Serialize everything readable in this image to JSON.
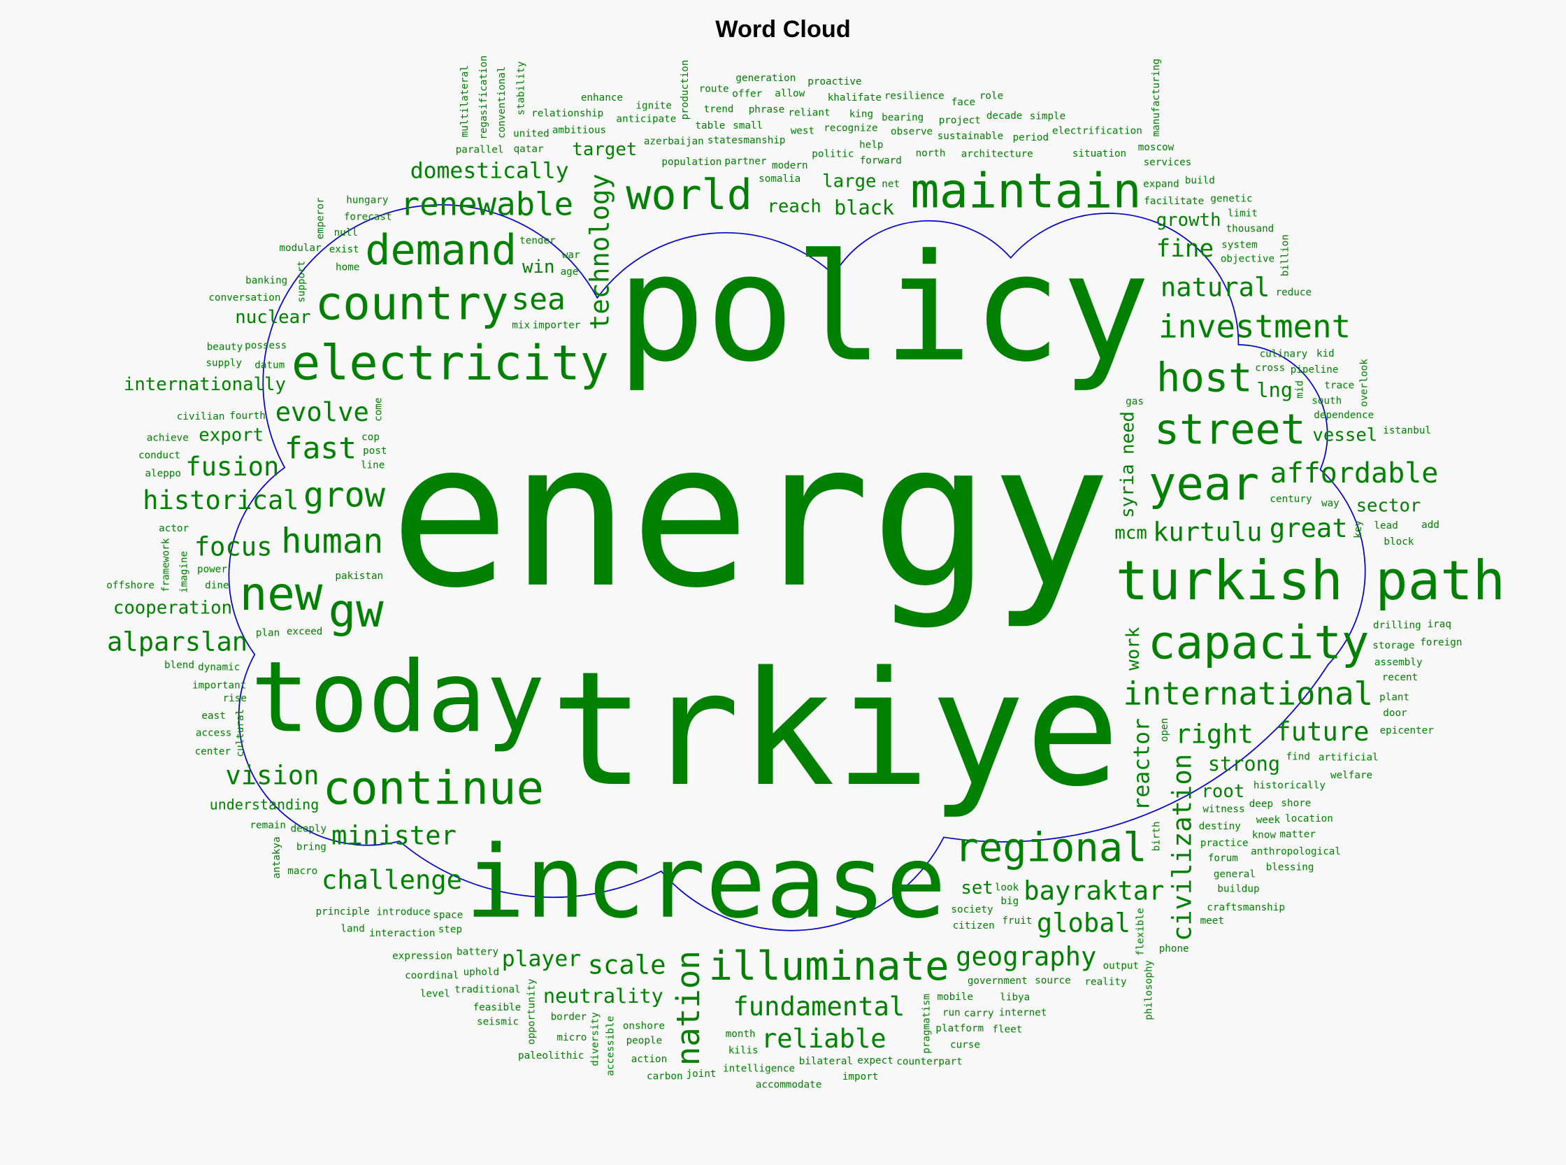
{
  "title": "Word Cloud",
  "chart_data": {
    "type": "wordcloud",
    "title": "Word Cloud",
    "word_color": "#008000",
    "outline_color": "#0000cc",
    "background_color": "#f8f8f8",
    "shape": "cloud",
    "words": [
      {
        "text": "energy",
        "weight": 100
      },
      {
        "text": "policy",
        "weight": 74
      },
      {
        "text": "trkiye",
        "weight": 79
      },
      {
        "text": "today",
        "weight": 49
      },
      {
        "text": "increase",
        "weight": 50
      },
      {
        "text": "electricity",
        "weight": 24
      },
      {
        "text": "maintain",
        "weight": 24
      },
      {
        "text": "country",
        "weight": 23
      },
      {
        "text": "demand",
        "weight": 21
      },
      {
        "text": "renewable",
        "weight": 16
      },
      {
        "text": "sea",
        "weight": 15
      },
      {
        "text": "world",
        "weight": 21
      },
      {
        "text": "kurtulu",
        "weight": 13
      },
      {
        "text": "black",
        "weight": 10
      },
      {
        "text": "great",
        "weight": 13
      },
      {
        "text": "right",
        "weight": 13
      },
      {
        "text": "natural",
        "weight": 13
      },
      {
        "text": "host",
        "weight": 20
      },
      {
        "text": "investment",
        "weight": 16
      },
      {
        "text": "affordable",
        "weight": 14
      },
      {
        "text": "year",
        "weight": 23
      },
      {
        "text": "vessel",
        "weight": 9
      },
      {
        "text": "sector",
        "weight": 9
      },
      {
        "text": "street",
        "weight": 21
      },
      {
        "text": "capacity",
        "weight": 23
      },
      {
        "text": "future",
        "weight": 13
      },
      {
        "text": "lng",
        "weight": 10
      },
      {
        "text": "turkish path",
        "weight": 27
      },
      {
        "text": "international",
        "weight": 16
      },
      {
        "text": "strong",
        "weight": 10
      },
      {
        "text": "bayraktar",
        "weight": 13
      },
      {
        "text": "global",
        "weight": 13
      },
      {
        "text": "mcm",
        "weight": 9
      },
      {
        "text": "fundamental",
        "weight": 13
      },
      {
        "text": "illuminate",
        "weight": 20
      },
      {
        "text": "reliable",
        "weight": 13
      },
      {
        "text": "neutrality",
        "weight": 10
      },
      {
        "text": "player",
        "weight": 11
      },
      {
        "text": "minister",
        "weight": 13
      },
      {
        "text": "continue",
        "weight": 23
      },
      {
        "text": "challenge",
        "weight": 13
      },
      {
        "text": "evolve",
        "weight": 13
      },
      {
        "text": "human",
        "weight": 17
      },
      {
        "text": "gw",
        "weight": 23
      },
      {
        "text": "new",
        "weight": 23
      },
      {
        "text": "vision",
        "weight": 13
      },
      {
        "text": "understanding",
        "weight": 7
      },
      {
        "text": "regional",
        "weight": 20
      },
      {
        "text": "scale",
        "weight": 13
      },
      {
        "text": "grow",
        "weight": 17
      },
      {
        "text": "geography",
        "weight": 13
      },
      {
        "text": "technology",
        "weight": 13
      },
      {
        "text": "civilization",
        "weight": 13
      },
      {
        "text": "nation",
        "weight": 16
      },
      {
        "text": "reactor",
        "weight": 11
      },
      {
        "text": "work",
        "weight": 9
      },
      {
        "text": "syria",
        "weight": 9
      },
      {
        "text": "need",
        "weight": 9
      },
      {
        "text": "historical",
        "weight": 13
      },
      {
        "text": "win",
        "weight": 9
      },
      {
        "text": "focus",
        "weight": 13
      },
      {
        "text": "target",
        "weight": 9
      },
      {
        "text": "domestically",
        "weight": 11
      },
      {
        "text": "nuclear",
        "weight": 9
      },
      {
        "text": "internationally",
        "weight": 9
      },
      {
        "text": "export",
        "weight": 9
      },
      {
        "text": "fast",
        "weight": 15
      },
      {
        "text": "fusion",
        "weight": 13
      },
      {
        "text": "alparslan",
        "weight": 13
      },
      {
        "text": "cooperation",
        "weight": 9
      },
      {
        "text": "growth",
        "weight": 9
      },
      {
        "text": "fine",
        "weight": 12
      },
      {
        "text": "reach",
        "weight": 9
      },
      {
        "text": "large",
        "weight": 9
      },
      {
        "text": "set",
        "weight": 9
      },
      {
        "text": "root",
        "weight": 9
      },
      {
        "text": "population",
        "weight": 5
      },
      {
        "text": "azerbaijan",
        "weight": 5
      },
      {
        "text": "home",
        "weight": 5
      },
      {
        "text": "importer",
        "weight": 5
      },
      {
        "text": "exist",
        "weight": 5
      },
      {
        "text": "pakistan",
        "weight": 5
      },
      {
        "text": "exceed",
        "weight": 5
      },
      {
        "text": "datum",
        "weight": 5
      },
      {
        "text": "come",
        "weight": 5
      },
      {
        "text": "possess",
        "weight": 5
      },
      {
        "text": "tender",
        "weight": 5
      },
      {
        "text": "qatar",
        "weight": 5
      },
      {
        "text": "post",
        "weight": 5
      },
      {
        "text": "parallel",
        "weight": 5
      },
      {
        "text": "united",
        "weight": 5
      },
      {
        "text": "ambitious",
        "weight": 5
      },
      {
        "text": "somalia",
        "weight": 5
      },
      {
        "text": "modern",
        "weight": 5
      },
      {
        "text": "statesmanship",
        "weight": 5
      },
      {
        "text": "anticipate",
        "weight": 5
      },
      {
        "text": "forecast",
        "weight": 5
      },
      {
        "text": "politic",
        "weight": 5
      },
      {
        "text": "cross",
        "weight": 5
      },
      {
        "text": "century",
        "weight": 5
      },
      {
        "text": "culinary",
        "weight": 5
      },
      {
        "text": "facilitate",
        "weight": 5
      },
      {
        "text": "architecture",
        "weight": 5
      },
      {
        "text": "mid",
        "weight": 5
      },
      {
        "text": "pipeline",
        "weight": 5
      },
      {
        "text": "gas",
        "weight": 5
      },
      {
        "text": "south",
        "weight": 5
      },
      {
        "text": "dependence",
        "weight": 5
      },
      {
        "text": "way",
        "weight": 5
      },
      {
        "text": "trace",
        "weight": 5
      },
      {
        "text": "objective",
        "weight": 5
      },
      {
        "text": "reduce",
        "weight": 5
      },
      {
        "text": "kid",
        "weight": 5
      },
      {
        "text": "system",
        "weight": 5
      },
      {
        "text": "thousand",
        "weight": 5
      },
      {
        "text": "expand",
        "weight": 5
      },
      {
        "text": "genetic",
        "weight": 5
      },
      {
        "text": "build",
        "weight": 5
      },
      {
        "text": "situation",
        "weight": 5
      },
      {
        "text": "services",
        "weight": 5
      },
      {
        "text": "period",
        "weight": 5
      },
      {
        "text": "north",
        "weight": 5
      },
      {
        "text": "forward",
        "weight": 5
      },
      {
        "text": "help",
        "weight": 5
      },
      {
        "text": "net",
        "weight": 5
      },
      {
        "text": "partner",
        "weight": 5
      },
      {
        "text": "west",
        "weight": 5
      },
      {
        "text": "recognize",
        "weight": 5
      },
      {
        "text": "small",
        "weight": 5
      },
      {
        "text": "observe",
        "weight": 5
      },
      {
        "text": "sustainable",
        "weight": 5
      },
      {
        "text": "electrification",
        "weight": 5
      },
      {
        "text": "limit",
        "weight": 5
      },
      {
        "text": "project",
        "weight": 5
      },
      {
        "text": "bearing",
        "weight": 5
      },
      {
        "text": "king",
        "weight": 5
      },
      {
        "text": "reliant",
        "weight": 5
      },
      {
        "text": "khalifate",
        "weight": 5
      },
      {
        "text": "resilience",
        "weight": 5
      },
      {
        "text": "decade",
        "weight": 5
      },
      {
        "text": "simple",
        "weight": 5
      },
      {
        "text": "face",
        "weight": 5
      },
      {
        "text": "moscow",
        "weight": 5
      },
      {
        "text": "table",
        "weight": 5
      },
      {
        "text": "phrase",
        "weight": 5
      },
      {
        "text": "billion",
        "weight": 5
      },
      {
        "text": "overlook",
        "weight": 5
      },
      {
        "text": "key",
        "weight": 5
      },
      {
        "text": "allow",
        "weight": 5
      },
      {
        "text": "age",
        "weight": 5
      },
      {
        "text": "trend",
        "weight": 5
      },
      {
        "text": "role",
        "weight": 5
      },
      {
        "text": "look",
        "weight": 5
      },
      {
        "text": "proactive",
        "weight": 5
      },
      {
        "text": "society",
        "weight": 5
      },
      {
        "text": "citizen",
        "weight": 5
      },
      {
        "text": "lead",
        "weight": 5
      },
      {
        "text": "witness",
        "weight": 5
      },
      {
        "text": "historically",
        "weight": 5
      },
      {
        "text": "manufacturing",
        "weight": 5
      },
      {
        "text": "block",
        "weight": 5
      },
      {
        "text": "drilling",
        "weight": 5
      },
      {
        "text": "storage",
        "weight": 5
      },
      {
        "text": "istanbul",
        "weight": 5
      },
      {
        "text": "find",
        "weight": 5
      },
      {
        "text": "assembly",
        "weight": 5
      },
      {
        "text": "add",
        "weight": 5
      },
      {
        "text": "destiny",
        "weight": 5
      },
      {
        "text": "practice",
        "weight": 5
      },
      {
        "text": "deep",
        "weight": 5
      },
      {
        "text": "week",
        "weight": 5
      },
      {
        "text": "fruit",
        "weight": 5
      },
      {
        "text": "government",
        "weight": 5
      },
      {
        "text": "mobile",
        "weight": 5
      },
      {
        "text": "production",
        "weight": 5
      },
      {
        "text": "flexible",
        "weight": 5
      },
      {
        "text": "artificial",
        "weight": 5
      },
      {
        "text": "recent",
        "weight": 5
      },
      {
        "text": "shore",
        "weight": 5
      },
      {
        "text": "plant",
        "weight": 5
      },
      {
        "text": "iraq",
        "weight": 5
      },
      {
        "text": "foreign",
        "weight": 5
      },
      {
        "text": "door",
        "weight": 5
      },
      {
        "text": "forum",
        "weight": 5
      },
      {
        "text": "know",
        "weight": 5
      },
      {
        "text": "location",
        "weight": 5
      },
      {
        "text": "welfare",
        "weight": 5
      },
      {
        "text": "epicenter",
        "weight": 5
      },
      {
        "text": "anthropological",
        "weight": 5
      },
      {
        "text": "general",
        "weight": 5
      },
      {
        "text": "matter",
        "weight": 5
      },
      {
        "text": "buildup",
        "weight": 5
      },
      {
        "text": "craftsmanship",
        "weight": 5
      },
      {
        "text": "blessing",
        "weight": 5
      },
      {
        "text": "meet",
        "weight": 5
      },
      {
        "text": "output",
        "weight": 5
      },
      {
        "text": "source",
        "weight": 5
      },
      {
        "text": "phone",
        "weight": 5
      },
      {
        "text": "reality",
        "weight": 5
      },
      {
        "text": "philosophy",
        "weight": 5
      },
      {
        "text": "birth",
        "weight": 5
      },
      {
        "text": "pragmatism",
        "weight": 5
      },
      {
        "text": "libya",
        "weight": 5
      },
      {
        "text": "carry",
        "weight": 5
      },
      {
        "text": "run",
        "weight": 5
      },
      {
        "text": "open",
        "weight": 5
      },
      {
        "text": "month",
        "weight": 5
      },
      {
        "text": "platform",
        "weight": 5
      },
      {
        "text": "expect",
        "weight": 5
      },
      {
        "text": "internet",
        "weight": 5
      },
      {
        "text": "fleet",
        "weight": 5
      },
      {
        "text": "curse",
        "weight": 5
      },
      {
        "text": "big",
        "weight": 5
      },
      {
        "text": "bilateral",
        "weight": 5
      },
      {
        "text": "intelligence",
        "weight": 5
      },
      {
        "text": "onshore",
        "weight": 5
      },
      {
        "text": "accessible",
        "weight": 5
      },
      {
        "text": "diversity",
        "weight": 5
      },
      {
        "text": "opportunity",
        "weight": 5
      },
      {
        "text": "battery",
        "weight": 5
      },
      {
        "text": "space",
        "weight": 5
      },
      {
        "text": "plan",
        "weight": 5
      },
      {
        "text": "introduce",
        "weight": 5
      },
      {
        "text": "bring",
        "weight": 5
      },
      {
        "text": "step",
        "weight": 5
      },
      {
        "text": "interaction",
        "weight": 5
      },
      {
        "text": "uphold",
        "weight": 5
      },
      {
        "text": "traditional",
        "weight": 5
      },
      {
        "text": "border",
        "weight": 5
      },
      {
        "text": "feasible",
        "weight": 5
      },
      {
        "text": "deeply",
        "weight": 5
      },
      {
        "text": "macro",
        "weight": 5
      },
      {
        "text": "principle",
        "weight": 5
      },
      {
        "text": "rise",
        "weight": 5
      },
      {
        "text": "important",
        "weight": 5
      },
      {
        "text": "imagine",
        "weight": 5
      },
      {
        "text": "cultural",
        "weight": 5
      },
      {
        "text": "center",
        "weight": 5
      },
      {
        "text": "expression",
        "weight": 5
      },
      {
        "text": "remain",
        "weight": 5
      },
      {
        "text": "coordinal",
        "weight": 5
      },
      {
        "text": "dynamic",
        "weight": 5
      },
      {
        "text": "level",
        "weight": 5
      },
      {
        "text": "seismic",
        "weight": 5
      },
      {
        "text": "people",
        "weight": 5
      },
      {
        "text": "kilis",
        "weight": 5
      },
      {
        "text": "action",
        "weight": 5
      },
      {
        "text": "joint",
        "weight": 5
      },
      {
        "text": "micro",
        "weight": 5
      },
      {
        "text": "carbon",
        "weight": 5
      },
      {
        "text": "paleolithic",
        "weight": 5
      },
      {
        "text": "accommodate",
        "weight": 5
      },
      {
        "text": "import",
        "weight": 5
      },
      {
        "text": "counterpart",
        "weight": 5
      },
      {
        "text": "ignite",
        "weight": 5
      },
      {
        "text": "relationship",
        "weight": 5
      },
      {
        "text": "dine",
        "weight": 5
      },
      {
        "text": "land",
        "weight": 5
      },
      {
        "text": "war",
        "weight": 5
      },
      {
        "text": "antakya",
        "weight": 5
      },
      {
        "text": "line",
        "weight": 5
      },
      {
        "text": "fourth",
        "weight": 5
      },
      {
        "text": "framework",
        "weight": 5
      },
      {
        "text": "support",
        "weight": 5
      },
      {
        "text": "civilian",
        "weight": 5
      },
      {
        "text": "actor",
        "weight": 5
      },
      {
        "text": "aleppo",
        "weight": 5
      },
      {
        "text": "conduct",
        "weight": 5
      },
      {
        "text": "offshore",
        "weight": 5
      },
      {
        "text": "blend",
        "weight": 5
      },
      {
        "text": "power",
        "weight": 5
      },
      {
        "text": "supply",
        "weight": 5
      },
      {
        "text": "beauty",
        "weight": 5
      },
      {
        "text": "achieve",
        "weight": 5
      },
      {
        "text": "conversation",
        "weight": 5
      },
      {
        "text": "null",
        "weight": 5
      },
      {
        "text": "mix",
        "weight": 5
      },
      {
        "text": "hungary",
        "weight": 5
      },
      {
        "text": "modular",
        "weight": 5
      },
      {
        "text": "banking",
        "weight": 5
      },
      {
        "text": "access",
        "weight": 5
      },
      {
        "text": "emperor",
        "weight": 5
      },
      {
        "text": "conventional",
        "weight": 5
      },
      {
        "text": "east",
        "weight": 5
      },
      {
        "text": "cop",
        "weight": 5
      },
      {
        "text": "route",
        "weight": 5
      },
      {
        "text": "enhance",
        "weight": 5
      },
      {
        "text": "generation",
        "weight": 5
      },
      {
        "text": "offer",
        "weight": 5
      },
      {
        "text": "regasification",
        "weight": 5
      },
      {
        "text": "stability",
        "weight": 5
      },
      {
        "text": "multilateral",
        "weight": 5
      }
    ]
  }
}
